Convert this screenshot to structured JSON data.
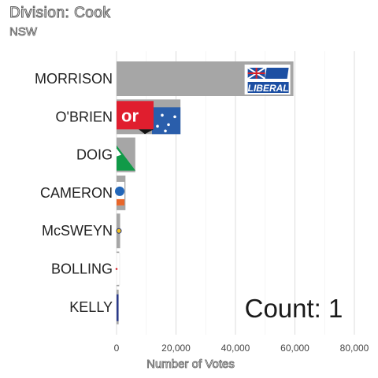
{
  "chart_data": {
    "type": "bar",
    "orientation": "horizontal",
    "title": "Division: Cook",
    "subtitle": "NSW",
    "categories": [
      "MORRISON",
      "O'BRIEN",
      "DOIG",
      "CAMERON",
      "McSWEYN",
      "BOLLING",
      "KELLY"
    ],
    "values": [
      59500,
      21500,
      6300,
      3000,
      1200,
      900,
      700
    ],
    "party_logos": [
      "Liberal",
      "Labor",
      "Greens",
      "",
      "",
      "",
      ""
    ],
    "xlabel": "Number of Votes",
    "ylabel": "",
    "xlim": [
      0,
      80000
    ],
    "xticks": [
      0,
      20000,
      40000,
      60000,
      80000
    ],
    "xtick_labels": [
      "0",
      "20,000",
      "40,000",
      "60,000",
      "80,000"
    ],
    "bar_color": "#a6a6a6",
    "grid": true,
    "annotation": "Count:  1"
  }
}
